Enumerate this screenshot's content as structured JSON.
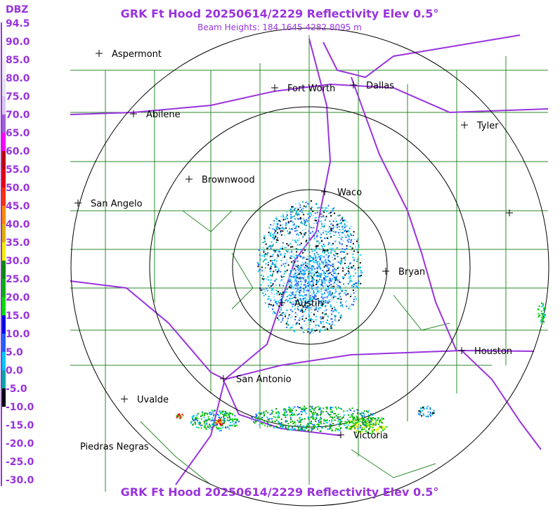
{
  "header": {
    "title": "GRK Ft Hood 20250614/2229 Reflectivity Elev 0.5°",
    "subtitle": "Beam Heights: 184 1645 4282 8095 m",
    "footer": "GRK Ft Hood 20250614/2229 Reflectivity Elev 0.5°"
  },
  "legend": {
    "unit": "DBZ",
    "labels": [
      "94.5",
      "90.0",
      "85.0",
      "80.0",
      "75.0",
      "70.0",
      "65.0",
      "60.0",
      "55.0",
      "50.0",
      "45.0",
      "40.0",
      "35.0",
      "30.0",
      "25.0",
      "20.0",
      "15.0",
      "10.0",
      "5.0",
      "0.0",
      "-5.0",
      "-10.0",
      "-15.0",
      "-20.0",
      "-25.0",
      "-30.0"
    ],
    "colors": [
      "#ffffff",
      "#f4f4f4",
      "#ececec",
      "#e4e4ee",
      "#d8c8f0",
      "#a060d8",
      "#ff00ff",
      "#c00000",
      "#e80000",
      "#ff3000",
      "#ff8800",
      "#e0b000",
      "#f0f000",
      "#008c00",
      "#00b400",
      "#00e000",
      "#0000e8",
      "#2060ff",
      "#00c8ff",
      "#00a8a8",
      "#000000",
      "#ffffff",
      "#ffffff",
      "#ffffff",
      "#ffffff",
      "#ffffff"
    ]
  },
  "cities": [
    "Aspermont",
    "Fort Worth",
    "Dallas",
    "Abilene",
    "Tyler",
    "Brownwood",
    "Waco",
    "San Angelo",
    "Bryan",
    "Austin",
    "Houston",
    "San Antonio",
    "Uvalde",
    "Victoria",
    "Piedras Negras"
  ]
}
